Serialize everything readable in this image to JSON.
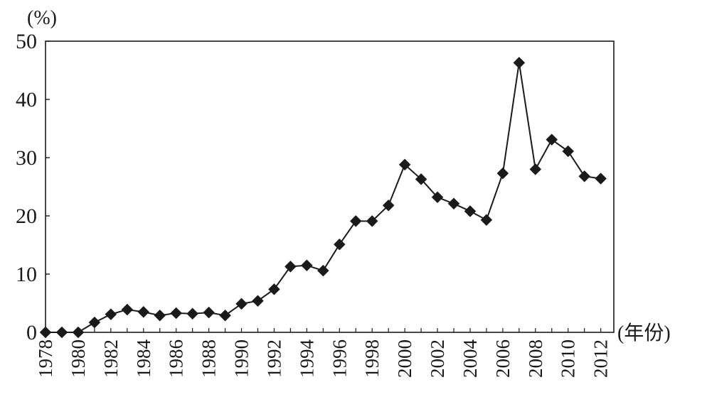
{
  "chart_data": {
    "type": "line",
    "title": "",
    "ylabel": "(%)",
    "xlabel": "(年份)",
    "ylim": [
      0,
      50
    ],
    "xlim": [
      1978,
      2012.8
    ],
    "yticks": [
      "0",
      "10",
      "20",
      "30",
      "40",
      "50"
    ],
    "xticks": [
      "1978",
      "1980",
      "1982",
      "1984",
      "1986",
      "1988",
      "1990",
      "1992",
      "1994",
      "1996",
      "1998",
      "2000",
      "2002",
      "2004",
      "2006",
      "2008",
      "2010",
      "2012"
    ],
    "grid": false,
    "legend": "none",
    "marker": "diamond",
    "color": "#1a1a1a",
    "x": [
      1978,
      1979,
      1980,
      1981,
      1982,
      1983,
      1984,
      1985,
      1986,
      1987,
      1988,
      1989,
      1990,
      1991,
      1992,
      1993,
      1994,
      1995,
      1996,
      1997,
      1998,
      1999,
      2000,
      2001,
      2002,
      2003,
      2004,
      2005,
      2006,
      2007,
      2008,
      2009,
      2010,
      2011,
      2012
    ],
    "values": [
      0,
      0,
      0,
      1.7,
      3.1,
      3.9,
      3.5,
      2.9,
      3.3,
      3.2,
      3.4,
      2.9,
      4.9,
      5.4,
      7.4,
      11.3,
      11.5,
      10.6,
      15.1,
      19.1,
      19.1,
      21.8,
      28.8,
      26.3,
      23.2,
      22.1,
      20.8,
      19.3,
      27.3,
      46.3,
      28.0,
      33.1,
      31.1,
      26.8,
      26.4
    ]
  }
}
